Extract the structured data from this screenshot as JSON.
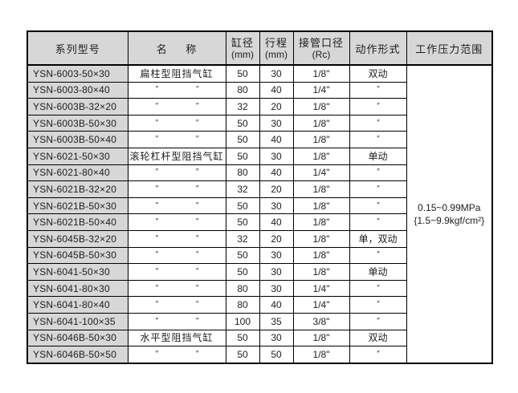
{
  "table": {
    "columns": {
      "model": "系列型号",
      "name": "名 称",
      "bore_line1": "缸径",
      "bore_line2": "(mm)",
      "stroke_line1": "行程",
      "stroke_line2": "(mm)",
      "port_line1": "接管口径",
      "port_line2": "(Rc)",
      "action": "动作形式",
      "pressure": "工作压力范围"
    },
    "rows": [
      {
        "model": "YSN-6003-50×30",
        "name": "扁柱型阻挡气缸",
        "bore": "50",
        "stroke": "30",
        "port": "1/8\"",
        "action": "双动"
      },
      {
        "model": "YSN-6003-80×40",
        "name": "″ ″",
        "bore": "80",
        "stroke": "40",
        "port": "1/4\"",
        "action": "″"
      },
      {
        "model": "YSN-6003B-32×20",
        "name": "″ ″",
        "bore": "32",
        "stroke": "20",
        "port": "1/8\"",
        "action": "″"
      },
      {
        "model": "YSN-6003B-50×30",
        "name": "″ ″",
        "bore": "50",
        "stroke": "30",
        "port": "1/8\"",
        "action": "″"
      },
      {
        "model": "YSN-6003B-50×40",
        "name": "″ ″",
        "bore": "50",
        "stroke": "40",
        "port": "1/8\"",
        "action": "″"
      },
      {
        "model": "YSN-6021-50×30",
        "name": "滚轮杠杆型阻挡气缸",
        "bore": "50",
        "stroke": "30",
        "port": "1/8\"",
        "action": "单动"
      },
      {
        "model": "YSN-6021-80×40",
        "name": "″ ″",
        "bore": "80",
        "stroke": "40",
        "port": "1/4\"",
        "action": "″"
      },
      {
        "model": "YSN-6021B-32×20",
        "name": "″ ″",
        "bore": "32",
        "stroke": "20",
        "port": "1/8\"",
        "action": "″"
      },
      {
        "model": "YSN-6021B-50×30",
        "name": "″ ″",
        "bore": "50",
        "stroke": "30",
        "port": "1/8\"",
        "action": "″"
      },
      {
        "model": "YSN-6021B-50×40",
        "name": "″ ″",
        "bore": "50",
        "stroke": "40",
        "port": "1/8\"",
        "action": "″"
      },
      {
        "model": "YSN-6045B-32×20",
        "name": "″ ″",
        "bore": "32",
        "stroke": "20",
        "port": "1/8\"",
        "action": "单，双动"
      },
      {
        "model": "YSN-6045B-50×30",
        "name": "″ ″",
        "bore": "50",
        "stroke": "30",
        "port": "1/8\"",
        "action": "″"
      },
      {
        "model": "YSN-6041-50×30",
        "name": "″ ″",
        "bore": "50",
        "stroke": "30",
        "port": "1/8\"",
        "action": "单动"
      },
      {
        "model": "YSN-6041-80×30",
        "name": "″ ″",
        "bore": "80",
        "stroke": "30",
        "port": "1/4\"",
        "action": "″"
      },
      {
        "model": "YSN-6041-80×40",
        "name": "″ ″",
        "bore": "80",
        "stroke": "40",
        "port": "1/4\"",
        "action": "″"
      },
      {
        "model": "YSN-6041-100×35",
        "name": "″ ″",
        "bore": "100",
        "stroke": "35",
        "port": "3/8\"",
        "action": "″"
      },
      {
        "model": "YSN-6046B-50×30",
        "name": "水平型阻挡气缸",
        "bore": "50",
        "stroke": "30",
        "port": "1/8\"",
        "action": "双动"
      },
      {
        "model": "YSN-6046B-50×50",
        "name": "″ ″",
        "bore": "50",
        "stroke": "50",
        "port": "1/8\"",
        "action": "″"
      }
    ],
    "pressure_value_line1": "0.15~0.99MPa",
    "pressure_value_line2": "{1.5~9.9kgf/cm²}",
    "colors": {
      "header_bg": "#d7d7d7",
      "model_col_bg": "#d7d7d7",
      "border": "#000000",
      "text": "#1d1d1d"
    }
  }
}
